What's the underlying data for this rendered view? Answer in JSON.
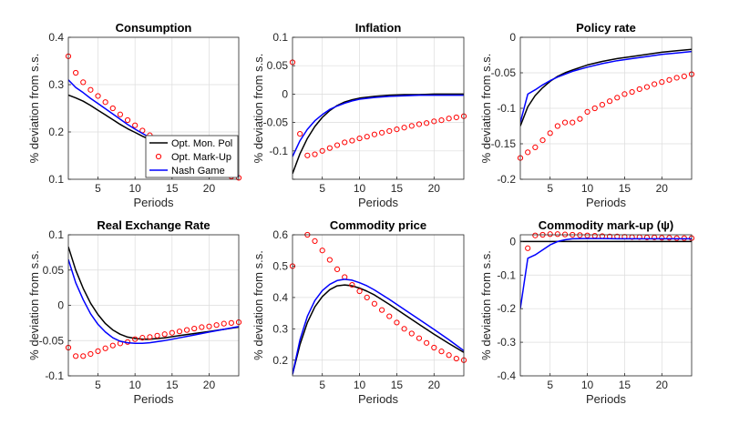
{
  "figure": {
    "line_colors": {
      "Opt. Mon. Pol": "#000000",
      "Opt. Mark-Up": "#ff0000",
      "Nash Game": "#0000ff"
    }
  },
  "legend": {
    "location": "bottom-right of the Consumption panel",
    "entries": [
      {
        "label": "Opt. Mon. Pol",
        "color": "#000000",
        "style": "line"
      },
      {
        "label": "Opt. Mark-Up",
        "color": "#ff0000",
        "style": "circle-markers"
      },
      {
        "label": "Nash Game",
        "color": "#0000ff",
        "style": "line"
      }
    ]
  },
  "chart_data": [
    {
      "type": "line",
      "title": "Consumption",
      "xlabel": "Periods",
      "ylabel": "% deviation from s.s.",
      "xlim": [
        1,
        24
      ],
      "ylim": [
        0.1,
        0.4
      ],
      "xticks": [
        5,
        10,
        15,
        20
      ],
      "yticks": [
        0.1,
        0.2,
        0.3,
        0.4
      ],
      "ytick_labels": [
        "0.1",
        "0.2",
        "0.3",
        "0.4"
      ],
      "grid": true,
      "series": [
        {
          "name": "Opt. Mon. Pol",
          "color": "#000000",
          "x": [
            1,
            2,
            3,
            4,
            5,
            6,
            7,
            8,
            9,
            10,
            11,
            12,
            23,
            24
          ],
          "values": [
            0.278,
            0.272,
            0.265,
            0.256,
            0.246,
            0.236,
            0.226,
            0.216,
            0.207,
            0.199,
            0.191,
            0.184,
            0.108,
            0.106
          ]
        },
        {
          "name": "Opt. Mark-Up",
          "color": "#ff0000",
          "x": [
            1,
            2,
            3,
            4,
            5,
            6,
            7,
            8,
            9,
            10,
            11,
            12,
            23,
            24
          ],
          "values": [
            0.36,
            0.325,
            0.305,
            0.289,
            0.276,
            0.263,
            0.25,
            0.237,
            0.225,
            0.214,
            0.203,
            0.193,
            0.106,
            0.103
          ]
        },
        {
          "name": "Nash Game",
          "color": "#0000ff",
          "x": [
            1,
            2,
            3,
            4,
            5,
            6,
            7,
            8,
            9,
            10,
            11,
            12,
            23,
            24
          ],
          "values": [
            0.31,
            0.294,
            0.283,
            0.271,
            0.26,
            0.249,
            0.238,
            0.227,
            0.216,
            0.206,
            0.197,
            0.188,
            0.11,
            0.107
          ]
        }
      ]
    },
    {
      "type": "line",
      "title": "Inflation",
      "xlabel": "Periods",
      "ylabel": "% deviation from s.s.",
      "xlim": [
        1,
        24
      ],
      "ylim": [
        -0.15,
        0.1
      ],
      "xticks": [
        5,
        10,
        15,
        20
      ],
      "yticks": [
        -0.15,
        -0.1,
        -0.05,
        0,
        0.05,
        0.1
      ],
      "ytick_labels": [
        "",
        "-0.1",
        "-0.05",
        "0",
        "0.05",
        "0.1"
      ],
      "grid": true,
      "series": [
        {
          "name": "Opt. Mon. Pol",
          "color": "#000000",
          "x": [
            1,
            2,
            3,
            4,
            5,
            6,
            7,
            8,
            9,
            10,
            12,
            14,
            16,
            18,
            20,
            22,
            24
          ],
          "values": [
            -0.14,
            -0.105,
            -0.078,
            -0.057,
            -0.041,
            -0.029,
            -0.02,
            -0.014,
            -0.01,
            -0.007,
            -0.004,
            -0.002,
            -0.001,
            -0.001,
            0,
            0,
            0
          ]
        },
        {
          "name": "Opt. Mark-Up",
          "color": "#ff0000",
          "x": [
            1,
            2,
            3,
            4,
            5,
            6,
            7,
            8,
            9,
            10,
            11,
            12,
            13,
            14,
            15,
            16,
            17,
            18,
            19,
            20,
            21,
            22,
            23,
            24
          ],
          "values": [
            0.056,
            -0.07,
            -0.108,
            -0.106,
            -0.1,
            -0.095,
            -0.09,
            -0.085,
            -0.082,
            -0.078,
            -0.075,
            -0.071,
            -0.068,
            -0.065,
            -0.062,
            -0.059,
            -0.056,
            -0.053,
            -0.051,
            -0.048,
            -0.046,
            -0.043,
            -0.041,
            -0.039
          ]
        },
        {
          "name": "Nash Game",
          "color": "#0000ff",
          "x": [
            1,
            2,
            3,
            4,
            5,
            6,
            7,
            8,
            9,
            10,
            12,
            14,
            16,
            18,
            20,
            22,
            24
          ],
          "values": [
            -0.11,
            -0.082,
            -0.062,
            -0.047,
            -0.036,
            -0.027,
            -0.021,
            -0.016,
            -0.012,
            -0.009,
            -0.006,
            -0.004,
            -0.003,
            -0.002,
            -0.002,
            -0.002,
            -0.002
          ]
        }
      ]
    },
    {
      "type": "line",
      "title": "Policy rate",
      "xlabel": "Periods",
      "ylabel": "% deviation from s.s.",
      "xlim": [
        1,
        24
      ],
      "ylim": [
        -0.2,
        0
      ],
      "xticks": [
        5,
        10,
        15,
        20
      ],
      "yticks": [
        -0.2,
        -0.15,
        -0.1,
        -0.05,
        0
      ],
      "ytick_labels": [
        "-0.2",
        "-0.15",
        "-0.1",
        "-0.05",
        "0"
      ],
      "grid": true,
      "series": [
        {
          "name": "Opt. Mon. Pol",
          "color": "#000000",
          "x": [
            1,
            2,
            3,
            4,
            5,
            6,
            7,
            8,
            10,
            12,
            14,
            16,
            18,
            20,
            22,
            24
          ],
          "values": [
            -0.125,
            -0.098,
            -0.082,
            -0.071,
            -0.062,
            -0.055,
            -0.05,
            -0.046,
            -0.039,
            -0.034,
            -0.03,
            -0.027,
            -0.024,
            -0.021,
            -0.019,
            -0.017
          ]
        },
        {
          "name": "Opt. Mark-Up",
          "color": "#ff0000",
          "x": [
            1,
            2,
            3,
            4,
            5,
            6,
            7,
            8,
            9,
            10,
            11,
            12,
            13,
            14,
            15,
            16,
            17,
            18,
            19,
            20,
            21,
            22,
            23,
            24
          ],
          "values": [
            -0.17,
            -0.162,
            -0.155,
            -0.145,
            -0.135,
            -0.125,
            -0.12,
            -0.12,
            -0.115,
            -0.105,
            -0.1,
            -0.095,
            -0.09,
            -0.085,
            -0.08,
            -0.077,
            -0.073,
            -0.07,
            -0.066,
            -0.063,
            -0.06,
            -0.057,
            -0.055,
            -0.052
          ]
        },
        {
          "name": "Nash Game",
          "color": "#0000ff",
          "x": [
            1,
            2,
            3,
            4,
            5,
            6,
            7,
            8,
            10,
            12,
            14,
            16,
            18,
            20,
            22,
            24
          ],
          "values": [
            -0.12,
            -0.08,
            -0.074,
            -0.067,
            -0.061,
            -0.056,
            -0.052,
            -0.048,
            -0.042,
            -0.037,
            -0.033,
            -0.03,
            -0.027,
            -0.024,
            -0.022,
            -0.02
          ]
        }
      ]
    },
    {
      "type": "line",
      "title": "Real Exchange Rate",
      "xlabel": "Periods",
      "ylabel": "% deviation from s.s.",
      "xlim": [
        1,
        24
      ],
      "ylim": [
        -0.1,
        0.1
      ],
      "xticks": [
        5,
        10,
        15,
        20
      ],
      "yticks": [
        -0.1,
        -0.05,
        0,
        0.05,
        0.1
      ],
      "ytick_labels": [
        "-0.1",
        "-0.05",
        "0",
        "0.05",
        "0.1"
      ],
      "grid": true,
      "series": [
        {
          "name": "Opt. Mon. Pol",
          "color": "#000000",
          "x": [
            1,
            2,
            3,
            4,
            5,
            6,
            7,
            8,
            9,
            10,
            11,
            12,
            14,
            16,
            18,
            20,
            22,
            24
          ],
          "values": [
            0.083,
            0.05,
            0.024,
            0.003,
            -0.013,
            -0.026,
            -0.035,
            -0.041,
            -0.045,
            -0.047,
            -0.048,
            -0.048,
            -0.046,
            -0.043,
            -0.04,
            -0.037,
            -0.034,
            -0.031
          ]
        },
        {
          "name": "Opt. Mark-Up",
          "color": "#ff0000",
          "x": [
            1,
            2,
            3,
            4,
            5,
            6,
            7,
            8,
            9,
            10,
            11,
            12,
            13,
            14,
            15,
            16,
            17,
            18,
            19,
            20,
            21,
            22,
            23,
            24
          ],
          "values": [
            -0.06,
            -0.072,
            -0.072,
            -0.069,
            -0.065,
            -0.061,
            -0.057,
            -0.054,
            -0.052,
            -0.048,
            -0.046,
            -0.045,
            -0.043,
            -0.041,
            -0.039,
            -0.037,
            -0.035,
            -0.033,
            -0.031,
            -0.03,
            -0.028,
            -0.026,
            -0.025,
            -0.024
          ]
        },
        {
          "name": "Nash Game",
          "color": "#0000ff",
          "x": [
            1,
            2,
            3,
            4,
            5,
            6,
            7,
            8,
            9,
            10,
            11,
            12,
            14,
            16,
            18,
            20,
            22,
            24
          ],
          "values": [
            0.065,
            0.032,
            0.008,
            -0.012,
            -0.027,
            -0.038,
            -0.046,
            -0.051,
            -0.053,
            -0.054,
            -0.054,
            -0.053,
            -0.05,
            -0.046,
            -0.042,
            -0.038,
            -0.034,
            -0.03
          ]
        }
      ]
    },
    {
      "type": "line",
      "title": "Commodity price",
      "xlabel": "Periods",
      "ylabel": "% deviation from s.s.",
      "xlim": [
        1,
        24
      ],
      "ylim": [
        0.15,
        0.6
      ],
      "xticks": [
        5,
        10,
        15,
        20
      ],
      "yticks": [
        0.2,
        0.3,
        0.4,
        0.5,
        0.6
      ],
      "ytick_labels": [
        "0.2",
        "0.3",
        "0.4",
        "0.5",
        "0.6"
      ],
      "grid": true,
      "series": [
        {
          "name": "Opt. Mon. Pol",
          "color": "#000000",
          "x": [
            1,
            2,
            3,
            4,
            5,
            6,
            7,
            8,
            9,
            10,
            11,
            12,
            14,
            16,
            18,
            20,
            22,
            24
          ],
          "values": [
            0.155,
            0.25,
            0.32,
            0.37,
            0.403,
            0.425,
            0.437,
            0.44,
            0.437,
            0.43,
            0.42,
            0.408,
            0.378,
            0.346,
            0.314,
            0.283,
            0.253,
            0.225
          ]
        },
        {
          "name": "Opt. Mark-Up",
          "color": "#ff0000",
          "x": [
            1,
            2,
            3,
            4,
            5,
            6,
            7,
            8,
            9,
            10,
            11,
            12,
            13,
            14,
            15,
            16,
            17,
            18,
            19,
            20,
            21,
            22,
            23,
            24
          ],
          "values": [
            0.5,
            0.61,
            0.6,
            0.58,
            0.55,
            0.52,
            0.49,
            0.465,
            0.44,
            0.42,
            0.4,
            0.38,
            0.36,
            0.34,
            0.32,
            0.3,
            0.285,
            0.27,
            0.255,
            0.24,
            0.228,
            0.216,
            0.205,
            0.2
          ]
        },
        {
          "name": "Nash Game",
          "color": "#0000ff",
          "x": [
            1,
            2,
            3,
            4,
            5,
            6,
            7,
            8,
            9,
            10,
            11,
            12,
            14,
            16,
            18,
            20,
            22,
            24
          ],
          "values": [
            0.155,
            0.265,
            0.34,
            0.39,
            0.422,
            0.442,
            0.454,
            0.458,
            0.455,
            0.447,
            0.437,
            0.424,
            0.394,
            0.362,
            0.33,
            0.298,
            0.265,
            0.23
          ]
        }
      ]
    },
    {
      "type": "line",
      "title": "Commodity mark-up (ψ)",
      "xlabel": "Periods",
      "ylabel": "% deviation from s.s.",
      "xlim": [
        1,
        24
      ],
      "ylim": [
        -0.4,
        0.02
      ],
      "xticks": [
        5,
        10,
        15,
        20
      ],
      "yticks": [
        -0.4,
        -0.3,
        -0.2,
        -0.1,
        0
      ],
      "ytick_labels": [
        "-0.4",
        "-0.3",
        "-0.2",
        "-0.1",
        "0"
      ],
      "grid": true,
      "series": [
        {
          "name": "Opt. Mon. Pol",
          "color": "#000000",
          "x": [
            1,
            24
          ],
          "values": [
            0,
            0
          ]
        },
        {
          "name": "Opt. Mark-Up",
          "color": "#ff0000",
          "x": [
            1,
            2,
            3,
            4,
            5,
            6,
            7,
            8,
            9,
            10,
            11,
            12,
            13,
            14,
            15,
            16,
            17,
            18,
            19,
            20,
            21,
            22,
            23,
            24
          ],
          "values": [
            -0.41,
            -0.02,
            0.018,
            0.02,
            0.022,
            0.022,
            0.021,
            0.02,
            0.019,
            0.018,
            0.017,
            0.016,
            0.015,
            0.015,
            0.014,
            0.013,
            0.013,
            0.012,
            0.012,
            0.011,
            0.011,
            0.01,
            0.01,
            0.01
          ]
        },
        {
          "name": "Nash Game",
          "color": "#0000ff",
          "x": [
            1,
            2,
            3,
            4,
            5,
            6,
            7,
            8,
            10,
            12,
            14,
            16,
            18,
            20,
            22,
            24
          ],
          "values": [
            -0.2,
            -0.05,
            -0.04,
            -0.025,
            -0.01,
            0,
            0.005,
            0.008,
            0.009,
            0.009,
            0.008,
            0.008,
            0.008,
            0.008,
            0.008,
            0.008
          ]
        }
      ]
    }
  ]
}
